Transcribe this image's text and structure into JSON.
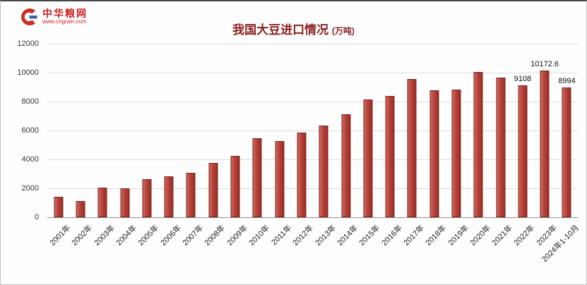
{
  "header": {
    "logo": {
      "brand": "中华粮网",
      "url": "www.cngrain.com"
    },
    "title": "我国大豆进口情况",
    "title_unit": "(万吨)"
  },
  "chart_data": {
    "type": "bar",
    "title": "我国大豆进口情况 (万吨)",
    "xlabel": "",
    "ylabel": "",
    "ylim": [
      0,
      12000
    ],
    "yticks": [
      0,
      2000,
      4000,
      6000,
      8000,
      10000,
      12000
    ],
    "grid": true,
    "legend": "none",
    "bar_color": "#b6423a",
    "bar_border_color": "#7d241d",
    "categories": [
      "2001年",
      "2002年",
      "2003年",
      "2004年",
      "2005年",
      "2006年",
      "2007年",
      "2008年",
      "2009年",
      "2010年",
      "2011年",
      "2012年",
      "2013年",
      "2014年",
      "2015年",
      "2016年",
      "2017年",
      "2018年",
      "2019年",
      "2020年",
      "2021年",
      "2022年",
      "2023年",
      "2024年1-10月"
    ],
    "values": [
      1394,
      1132,
      2074,
      2023,
      2659,
      2824,
      3082,
      3744,
      4255,
      5480,
      5264,
      5838,
      6338,
      7140,
      8169,
      8391,
      9553,
      8803,
      8851,
      10033,
      9652,
      9108,
      10172.6,
      8994
    ],
    "bar_labels": [
      "",
      "",
      "",
      "",
      "",
      "",
      "",
      "",
      "",
      "",
      "",
      "",
      "",
      "",
      "",
      "",
      "",
      "",
      "",
      "",
      "",
      "9108",
      "10172.6",
      "8994"
    ]
  }
}
